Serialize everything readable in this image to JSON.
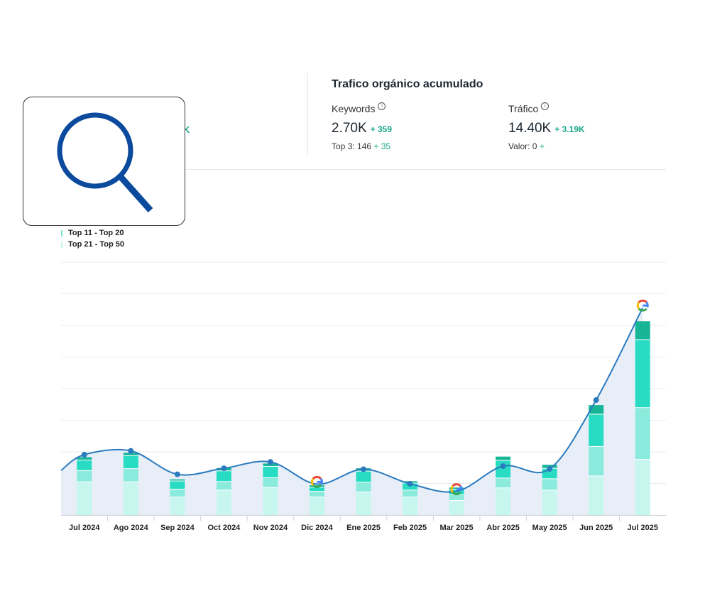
{
  "stats": {
    "title": "Trafico orgánico acumulado",
    "partial_value": "K",
    "keywords": {
      "label": "Keywords",
      "value": "2.70K",
      "delta": "+ 359",
      "sub_label": "Top 3: 146",
      "sub_delta": "+ 35"
    },
    "traffic": {
      "label": "Tráfico",
      "value": "14.40K",
      "delta": "+ 3.19K",
      "sub_label": "Valor: 0",
      "sub_delta": "+"
    }
  },
  "icons": {
    "search": "search-icon",
    "info": "info-icon",
    "google": "google-icon"
  },
  "legend": [
    {
      "label": "Top 11 - Top 20",
      "color": "#7fe3d3"
    },
    {
      "label": "Top 21 - Top 50",
      "color": "#c4f5ee"
    }
  ],
  "colors": {
    "accent": "#1aa88a",
    "line": "#2b7bbf",
    "area": "#e8eef7",
    "search_icon": "#0b4a9c",
    "segments": [
      "#16b598",
      "#27dcc2",
      "#8aeadc",
      "#c7f6ef"
    ]
  },
  "chart_data": {
    "type": "bar",
    "categories": [
      "Jul 2024",
      "Ago 2024",
      "Sep 2024",
      "Oct 2024",
      "Nov 2024",
      "Dic 2024",
      "Ene 2025",
      "Feb 2025",
      "Mar 2025",
      "Abr 2025",
      "May 2025",
      "Jun 2025",
      "Jul 2025"
    ],
    "series": [
      {
        "values": [
          10.5,
          10.5,
          5.7,
          7.9,
          8.7,
          5.7,
          7.3,
          5.7,
          4.6,
          8.6,
          7.9,
          12.4,
          17.6
        ]
      },
      {
        "values": [
          3.6,
          4.2,
          2.5,
          2.7,
          3.1,
          1.8,
          3.1,
          2.2,
          1.8,
          3.1,
          3.6,
          9.3,
          16.4
        ]
      },
      {
        "values": [
          3.3,
          4.1,
          2.6,
          3.4,
          3.6,
          1.3,
          3.5,
          2.2,
          1.8,
          5.6,
          3.3,
          10.2,
          21.5
        ]
      },
      {
        "values": [
          0.9,
          0.9,
          0.5,
          0.9,
          0.9,
          0.6,
          0.9,
          0.6,
          0.5,
          1.2,
          1.1,
          2.9,
          5.8
        ]
      }
    ],
    "line_values": [
      19.1,
      20.3,
      12.9,
      14.8,
      16.8,
      9.8,
      14.5,
      9.9,
      7.5,
      15.5,
      14.6,
      36.4,
      65.6
    ],
    "milestone_indices": [
      5,
      8,
      12
    ],
    "ylim": [
      0,
      80
    ],
    "grid": true
  }
}
